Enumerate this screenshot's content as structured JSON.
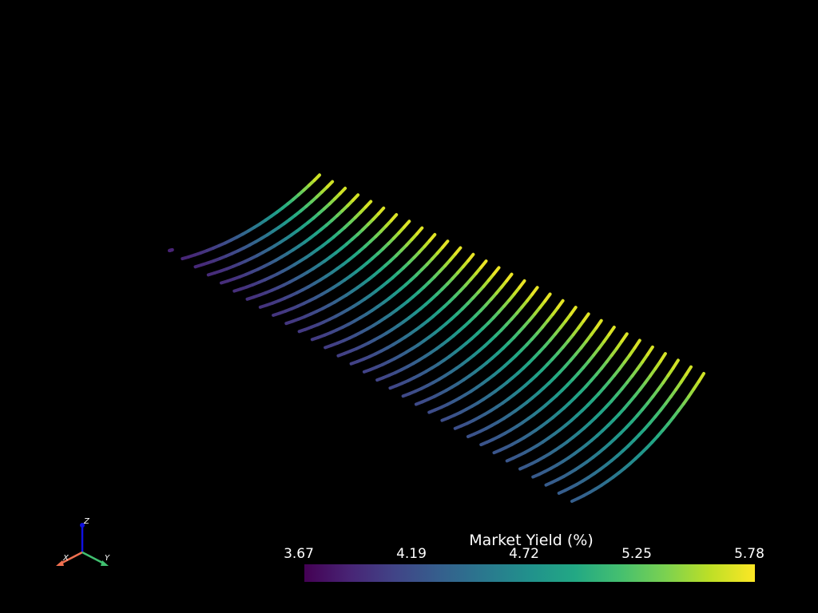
{
  "scene": {
    "background": "#000000",
    "colormap": "viridis"
  },
  "axes_widget": {
    "x_label": "X",
    "y_label": "Y",
    "z_label": "Z",
    "x_color": "#f07050",
    "y_color": "#40c070",
    "z_color": "#1010e0"
  },
  "colorbar": {
    "title": "Market Yield (%)",
    "ticks": [
      "3.67",
      "4.19",
      "4.72",
      "5.25",
      "5.78"
    ],
    "range": [
      3.67,
      5.78
    ]
  },
  "chart_data": {
    "type": "line",
    "title": "",
    "colorbar_title": "Market Yield (%)",
    "value_range": [
      3.67,
      5.78
    ],
    "curve_count": 32,
    "series_value_ranges": {
      "near_end": [
        3.7,
        4.3
      ],
      "far_end": [
        5.5,
        5.78
      ]
    }
  }
}
